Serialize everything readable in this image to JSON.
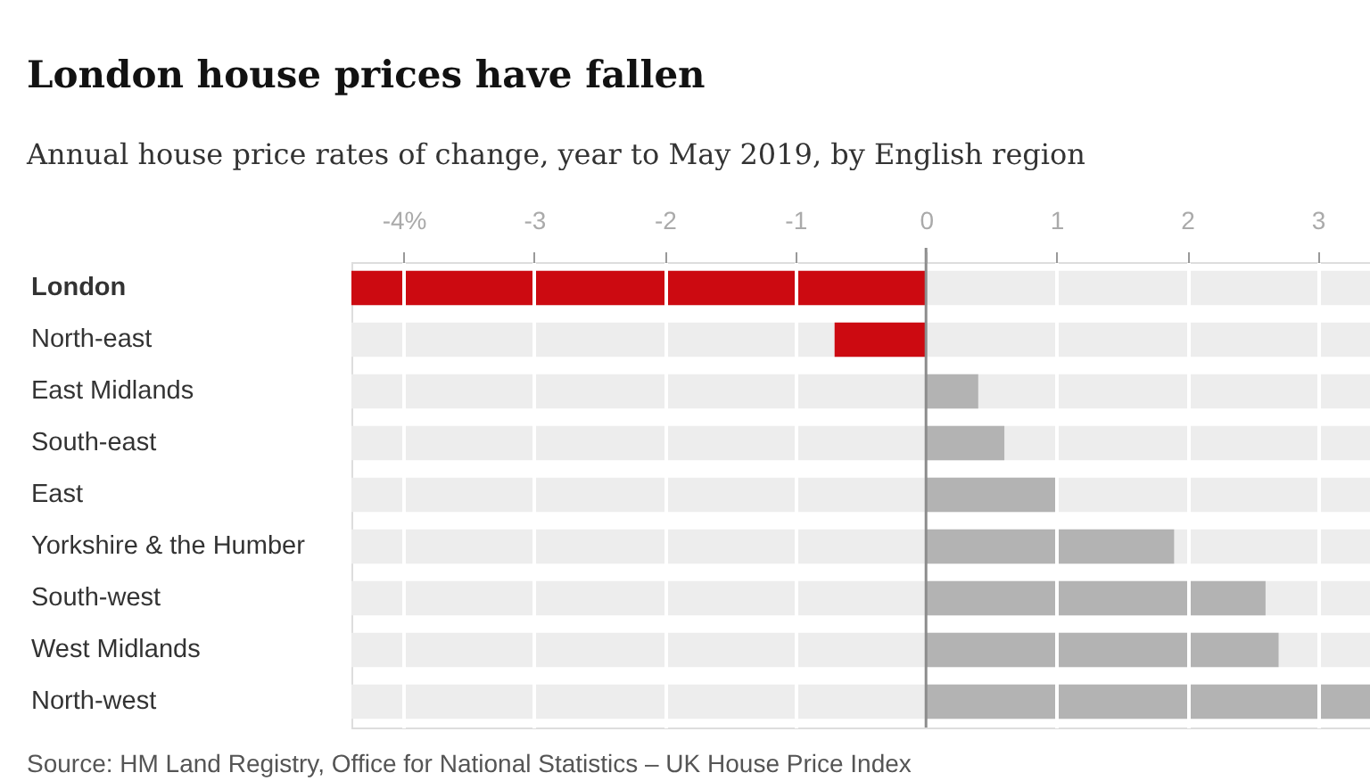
{
  "chart_data": {
    "type": "bar",
    "orientation": "horizontal",
    "title": "London house prices have fallen",
    "subtitle": "Annual house price rates of change, year to May 2019, by English region",
    "categories": [
      "London",
      "North-east",
      "East Midlands",
      "South-east",
      "East",
      "Yorkshire & the Humber",
      "South-west",
      "West Midlands",
      "North-west"
    ],
    "values": [
      -4.4,
      -0.7,
      0.4,
      0.6,
      1.0,
      1.9,
      2.6,
      2.7,
      3.4
    ],
    "colors": [
      "#cc0a11",
      "#cc0a11",
      "#b3b3b3",
      "#b3b3b3",
      "#b3b3b3",
      "#b3b3b3",
      "#b3b3b3",
      "#b3b3b3",
      "#b3b3b3"
    ],
    "xlim": [
      -4.4,
      3.4
    ],
    "xticks": [
      {
        "value": -4,
        "label": "-4%"
      },
      -3,
      -2,
      -1,
      0,
      1,
      2,
      3
    ],
    "grid": "x",
    "ref_lines": [
      {
        "axis": "x",
        "value": 0,
        "color": "#8c8c8c"
      }
    ],
    "annotations": [
      "Source: HM Land Registry, Office for National Statistics – UK House Price Index"
    ]
  }
}
